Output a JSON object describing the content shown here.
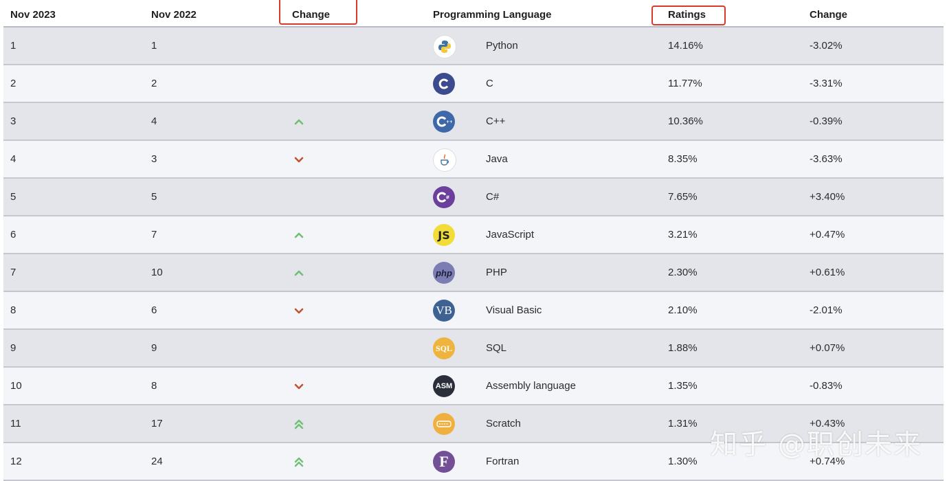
{
  "headers": {
    "now": "Nov 2023",
    "prev": "Nov 2022",
    "change": "Change",
    "language": "Programming Language",
    "ratings": "Ratings",
    "pct_change": "Change"
  },
  "rows": [
    {
      "now": "1",
      "prev": "1",
      "trend": "none",
      "logo": "python-logo",
      "lang": "Python",
      "rating": "14.16%",
      "change": "-3.02%"
    },
    {
      "now": "2",
      "prev": "2",
      "trend": "none",
      "logo": "c-logo",
      "lang": "C",
      "rating": "11.77%",
      "change": "-3.31%"
    },
    {
      "now": "3",
      "prev": "4",
      "trend": "up",
      "logo": "cpp-logo",
      "lang": "C++",
      "rating": "10.36%",
      "change": "-0.39%"
    },
    {
      "now": "4",
      "prev": "3",
      "trend": "down",
      "logo": "java-logo",
      "lang": "Java",
      "rating": "8.35%",
      "change": "-3.63%"
    },
    {
      "now": "5",
      "prev": "5",
      "trend": "none",
      "logo": "csharp-logo",
      "lang": "C#",
      "rating": "7.65%",
      "change": "+3.40%"
    },
    {
      "now": "6",
      "prev": "7",
      "trend": "up",
      "logo": "javascript-logo",
      "lang": "JavaScript",
      "rating": "3.21%",
      "change": "+0.47%"
    },
    {
      "now": "7",
      "prev": "10",
      "trend": "up",
      "logo": "php-logo",
      "lang": "PHP",
      "rating": "2.30%",
      "change": "+0.61%"
    },
    {
      "now": "8",
      "prev": "6",
      "trend": "down",
      "logo": "visual-basic-logo",
      "lang": "Visual Basic",
      "rating": "2.10%",
      "change": "-2.01%"
    },
    {
      "now": "9",
      "prev": "9",
      "trend": "none",
      "logo": "sql-logo",
      "lang": "SQL",
      "rating": "1.88%",
      "change": "+0.07%"
    },
    {
      "now": "10",
      "prev": "8",
      "trend": "down",
      "logo": "assembly-logo",
      "lang": "Assembly language",
      "rating": "1.35%",
      "change": "-0.83%"
    },
    {
      "now": "11",
      "prev": "17",
      "trend": "double-up",
      "logo": "scratch-logo",
      "lang": "Scratch",
      "rating": "1.31%",
      "change": "+0.43%"
    },
    {
      "now": "12",
      "prev": "24",
      "trend": "double-up",
      "logo": "fortran-logo",
      "lang": "Fortran",
      "rating": "1.30%",
      "change": "+0.74%"
    }
  ],
  "logo_text": {
    "javascript-logo": "JS",
    "php-logo": "php",
    "visual-basic-logo": "VB",
    "sql-logo": "SQL",
    "assembly-logo": "ASM",
    "fortran-logo": "F"
  },
  "colors": {
    "up": "#6fbf73",
    "down": "#c0532e",
    "highlight_box": "#d9382b"
  },
  "watermark": "知乎 @职创未来"
}
